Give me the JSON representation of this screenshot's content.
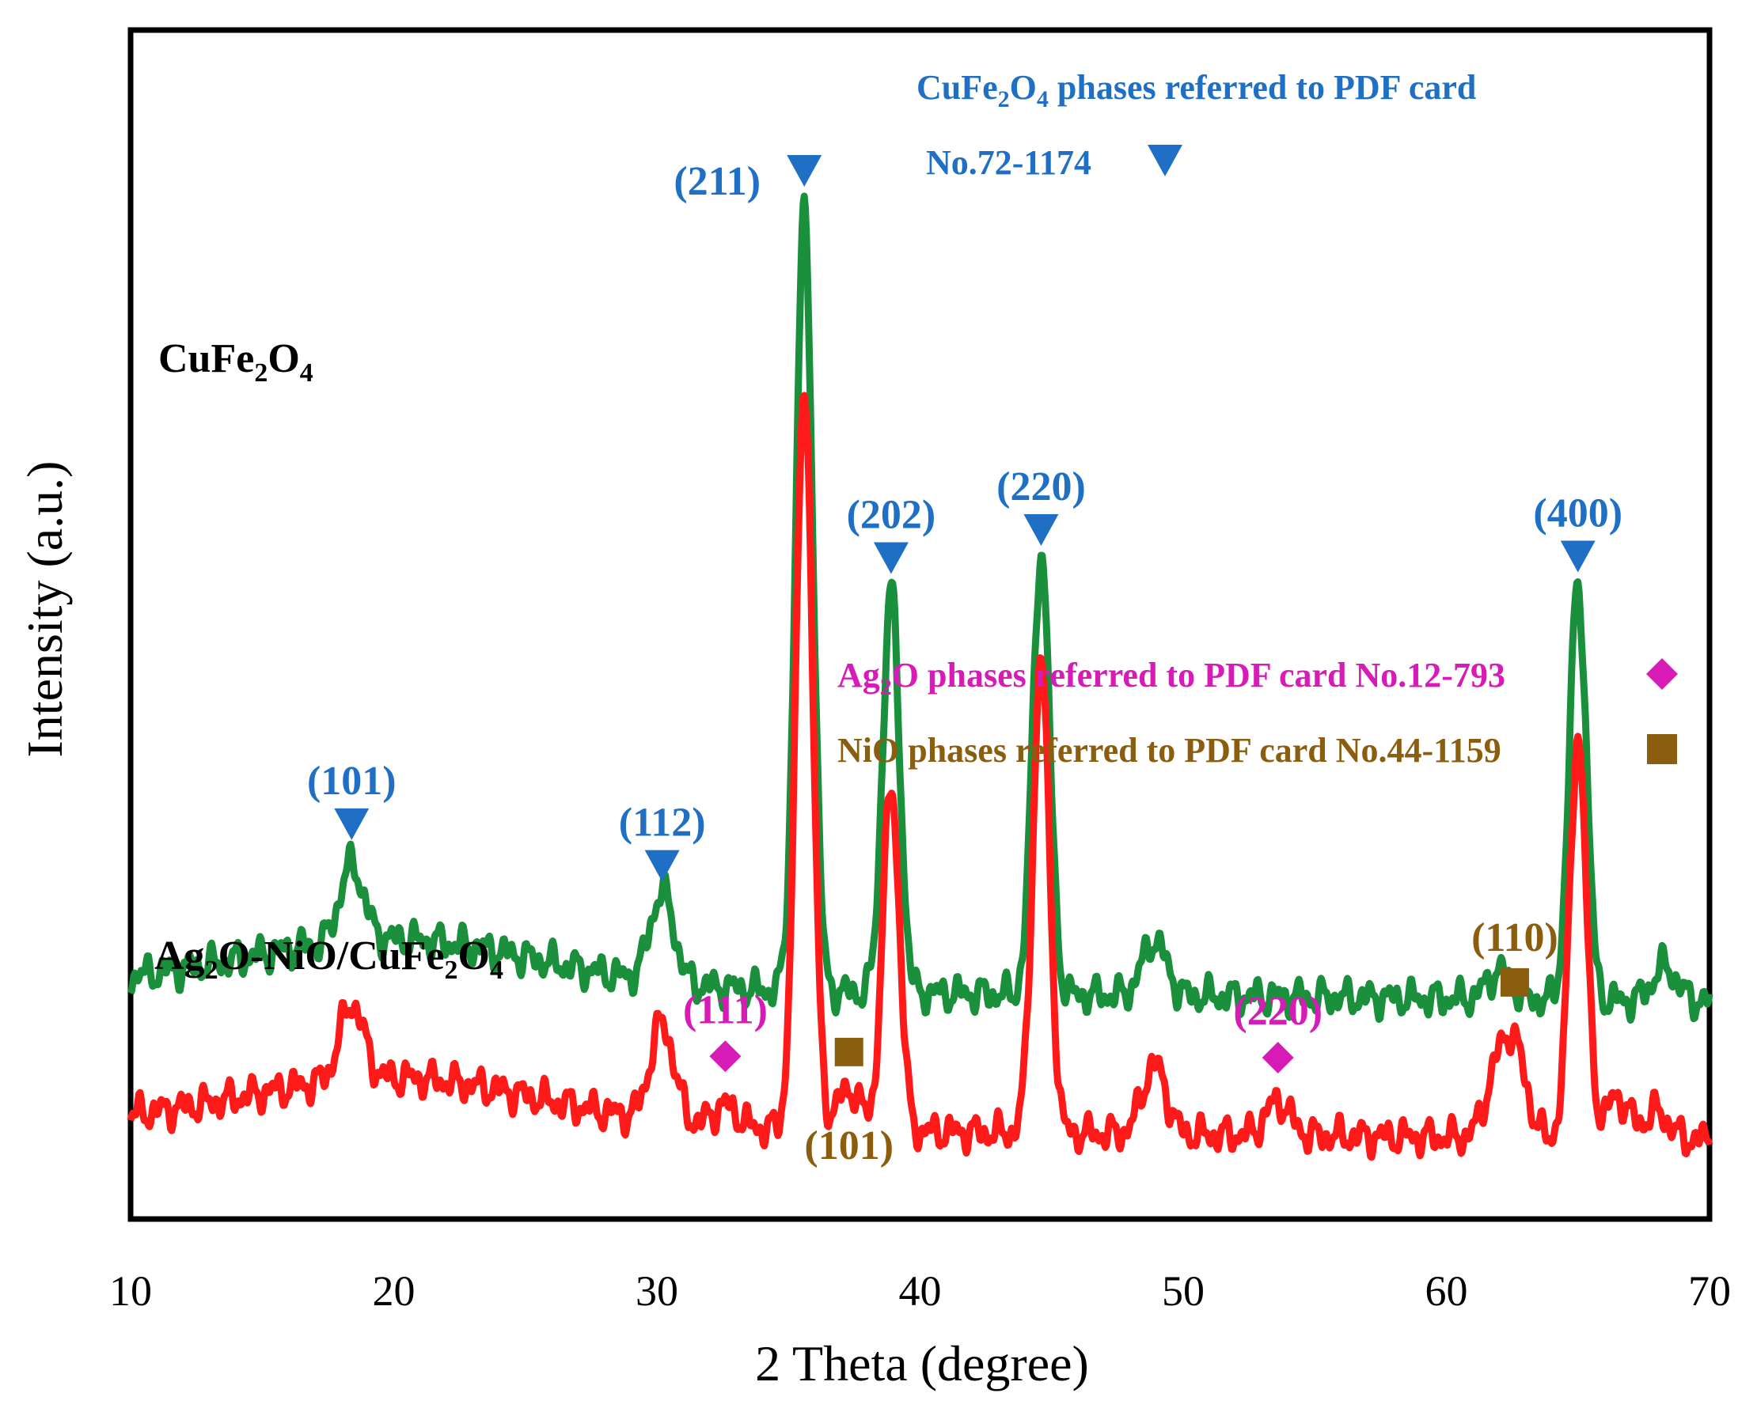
{
  "chart_data": {
    "type": "line",
    "xlabel": "2 Theta (degree)",
    "ylabel": "Intensity (a.u.)",
    "xlim": [
      10,
      70
    ],
    "xticks": [
      "10",
      "20",
      "30",
      "40",
      "50",
      "60",
      "70"
    ],
    "grid": false,
    "colors": {
      "cufe2o4_series": "#1a8f3c",
      "composite_series": "#ff1a1a",
      "cufe2o4_marker": "#1f6fc4",
      "ag2o_marker": "#d61bb7",
      "nio_marker": "#8b5e0f"
    },
    "series": [
      {
        "name": "CuFe2O4",
        "name_text": "CuFe",
        "name_sub1": "2",
        "name_mid": "O",
        "name_sub2": "4",
        "baseline_intensity": 1.0,
        "peaks": [
          {
            "two_theta": 18.4,
            "intensity": 0.55
          },
          {
            "two_theta": 30.2,
            "intensity": 0.65
          },
          {
            "two_theta": 35.6,
            "intensity": 5.6
          },
          {
            "two_theta": 38.9,
            "intensity": 2.9
          },
          {
            "two_theta": 44.6,
            "intensity": 3.2
          },
          {
            "two_theta": 48.9,
            "intensity": 0.4
          },
          {
            "two_theta": 62.0,
            "intensity": 0.2
          },
          {
            "two_theta": 65.0,
            "intensity": 3.0
          },
          {
            "two_theta": 68.3,
            "intensity": 0.25
          }
        ]
      },
      {
        "name": "Ag2O-NiO/CuFe2O4",
        "name_text": "Ag",
        "name_sub1": "2",
        "name_mid": "O-NiO/CuFe",
        "name_sub2": "2",
        "name_mid2": "O",
        "name_sub3": "4",
        "baseline_intensity": 0.0,
        "peaks": [
          {
            "two_theta": 18.4,
            "intensity": 0.55
          },
          {
            "two_theta": 30.2,
            "intensity": 0.7
          },
          {
            "two_theta": 32.6,
            "intensity": 0.15
          },
          {
            "two_theta": 35.6,
            "intensity": 5.4
          },
          {
            "two_theta": 37.3,
            "intensity": 0.3
          },
          {
            "two_theta": 38.9,
            "intensity": 2.5
          },
          {
            "two_theta": 44.6,
            "intensity": 3.4
          },
          {
            "two_theta": 48.9,
            "intensity": 0.5
          },
          {
            "two_theta": 53.6,
            "intensity": 0.25
          },
          {
            "two_theta": 61.9,
            "intensity": 0.4
          },
          {
            "two_theta": 62.6,
            "intensity": 0.6
          },
          {
            "two_theta": 65.0,
            "intensity": 2.9
          },
          {
            "two_theta": 66.5,
            "intensity": 0.3
          },
          {
            "two_theta": 68.0,
            "intensity": 0.2
          }
        ]
      }
    ],
    "annotations": {
      "cufe2o4_legend_line1_a": "CuFe",
      "cufe2o4_legend_line1_sub1": "2",
      "cufe2o4_legend_line1_b": "O",
      "cufe2o4_legend_line1_sub2": "4",
      "cufe2o4_legend_line1_c": " phases referred to PDF card",
      "cufe2o4_legend_line2": "No.72-1174",
      "ag2o_legend_a": "Ag",
      "ag2o_legend_sub": "2",
      "ag2o_legend_b": "O phases referred to PDF card No.12-793",
      "nio_legend": "NiO phases referred to PDF card No.44-1159",
      "cufe2o4_peaks": [
        {
          "label": "(101)",
          "two_theta": 18.4
        },
        {
          "label": "(112)",
          "two_theta": 30.2
        },
        {
          "label": "(211)",
          "two_theta": 35.6
        },
        {
          "label": "(202)",
          "two_theta": 38.9
        },
        {
          "label": "(220)",
          "two_theta": 44.6
        },
        {
          "label": "(400)",
          "two_theta": 65.0
        }
      ],
      "ag2o_peaks": [
        {
          "label": "(111)",
          "two_theta": 32.6
        },
        {
          "label": "(220)",
          "two_theta": 53.6
        }
      ],
      "nio_peaks": [
        {
          "label": "(101)",
          "two_theta": 37.3
        },
        {
          "label": "(110)",
          "two_theta": 62.6
        }
      ]
    }
  }
}
